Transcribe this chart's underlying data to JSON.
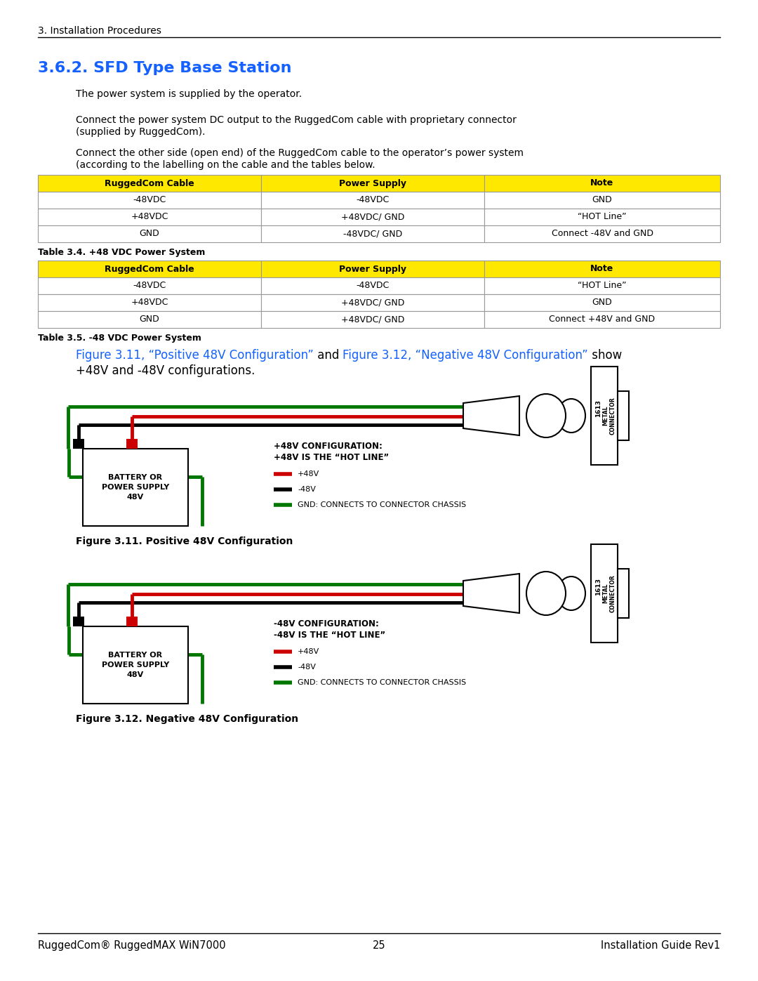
{
  "page_header": "3. Installation Procedures",
  "section_title": "3.6.2. SFD Type Base Station",
  "para1": "The power system is supplied by the operator.",
  "para2a": "Connect the power system DC output to the RuggedCom cable with proprietary connector",
  "para2b": "(supplied by RuggedCom).",
  "para3a": "Connect the other side (open end) of the RuggedCom cable to the operator’s power system",
  "para3b": "(according to the labelling on the cable and the tables below.",
  "table1_header": [
    "RuggedCom Cable",
    "Power Supply",
    "Note"
  ],
  "table1_rows": [
    [
      "-48VDC",
      "-48VDC",
      "GND"
    ],
    [
      "+48VDC",
      "+48VDC/ GND",
      "“HOT Line”"
    ],
    [
      "GND",
      "-48VDC/ GND",
      "Connect -48V and GND"
    ]
  ],
  "table1_caption": "Table 3.4. +48 VDC Power System",
  "table2_header": [
    "RuggedCom Cable",
    "Power Supply",
    "Note"
  ],
  "table2_rows": [
    [
      "-48VDC",
      "-48VDC",
      "“HOT Line”"
    ],
    [
      "+48VDC",
      "+48VDC/ GND",
      "GND"
    ],
    [
      "GND",
      "+48VDC/ GND",
      "Connect +48V and GND"
    ]
  ],
  "table2_caption": "Table 3.5. -48 VDC Power System",
  "ref_text_part1": "Figure 3.11, “Positive 48V Configuration”",
  "ref_text_and": " and ",
  "ref_text_part2": "Figure 3.12, “Negative 48V Configuration”",
  "ref_text_show": " show",
  "ref_text_line2": "+48V and -48V configurations.",
  "fig1_label": "+48V CONFIGURATION:",
  "fig1_desc": "+48V IS THE “HOT LINE”",
  "fig1_caption": "Figure 3.11. Positive 48V Configuration",
  "fig2_label": "-48V CONFIGURATION:",
  "fig2_desc": "-48V IS THE “HOT LINE”",
  "fig2_caption": "Figure 3.12. Negative 48V Configuration",
  "legend_pos": "+48V",
  "legend_neg": "-48V",
  "legend_gnd": "GND: CONNECTS TO CONNECTOR CHASSIS",
  "battery_line1": "BATTERY OR",
  "battery_line2": "POWER SUPPLY",
  "battery_line3": "48V",
  "footer_left": "RuggedCom® RuggedMAX WiN7000",
  "footer_center": "25",
  "footer_right": "Installation Guide Rev1",
  "header_bg": "#FFE800",
  "blue_color": "#1461FF",
  "body_text_color": "#000000",
  "green_color": "#007700",
  "red_color": "#CC0000",
  "black_color": "#000000",
  "bg_color": "#FFFFFF"
}
